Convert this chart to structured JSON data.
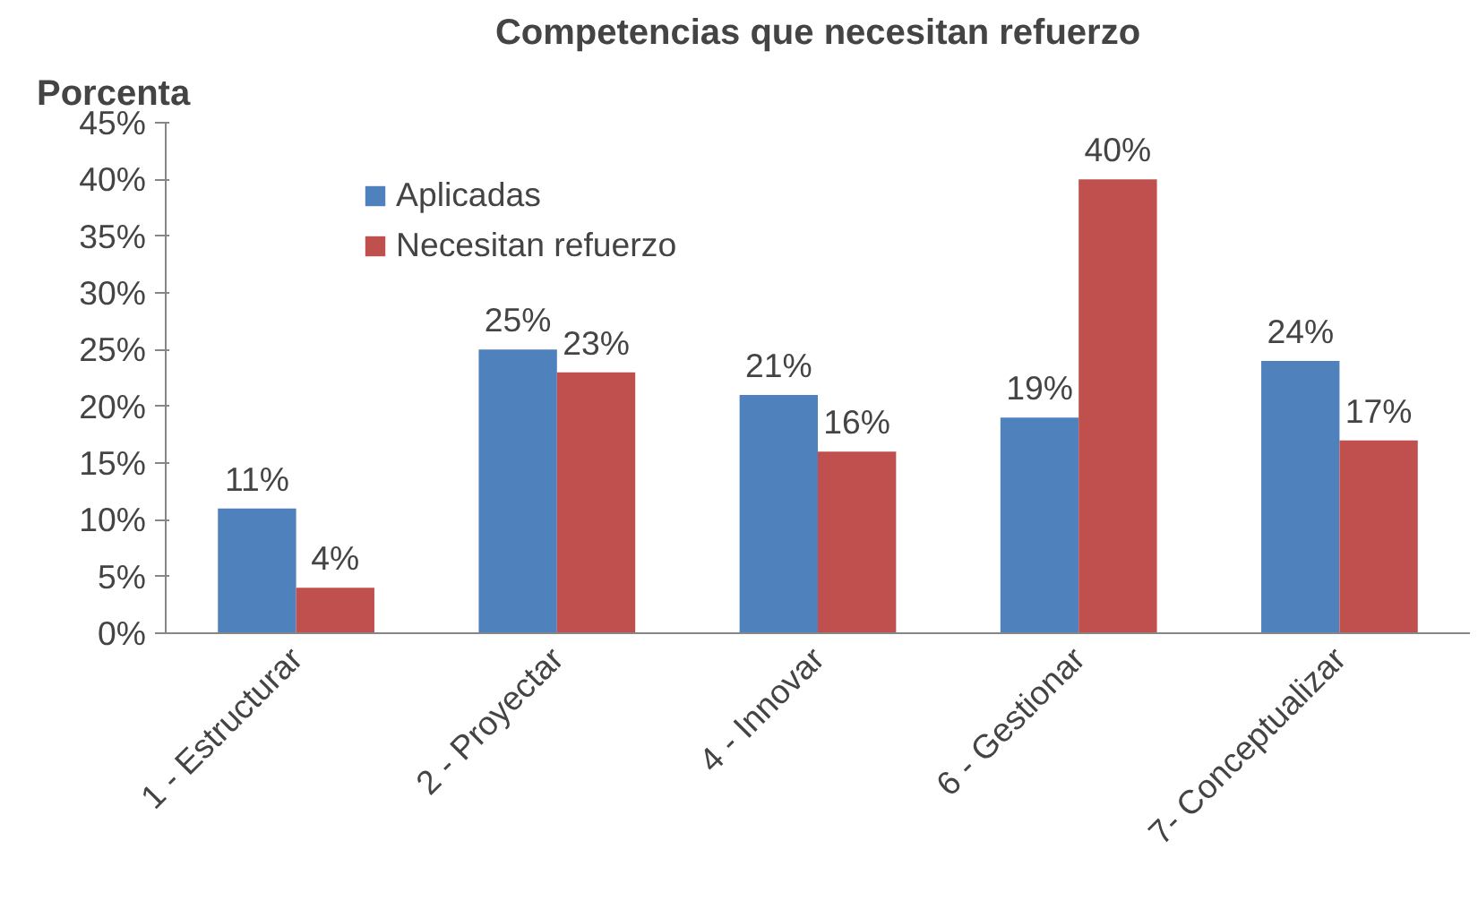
{
  "chart_data": {
    "type": "bar",
    "title": "Competencias que necesitan refuerzo",
    "ylabel": "Porcenta",
    "categories": [
      "1 - Estructurar",
      "2 - Proyectar",
      "4 - Innovar",
      "6 - Gestionar",
      "7- Conceptualizar"
    ],
    "series": [
      {
        "name": "Aplicadas",
        "color": "#4f81bd",
        "values": [
          11,
          25,
          21,
          19,
          24
        ],
        "value_labels": [
          "11%",
          "25%",
          "21%",
          "19%",
          "24%"
        ]
      },
      {
        "name": "Necesitan refuerzo",
        "color": "#c0504d",
        "values": [
          4,
          23,
          16,
          40,
          17
        ],
        "value_labels": [
          "4%",
          "23%",
          "16%",
          "40%",
          "17%"
        ]
      }
    ],
    "ylim": [
      0,
      45
    ],
    "yticks": [
      {
        "value": 0,
        "label": "0%"
      },
      {
        "value": 5,
        "label": "5%"
      },
      {
        "value": 10,
        "label": "10%"
      },
      {
        "value": 15,
        "label": "15%"
      },
      {
        "value": 20,
        "label": "20%"
      },
      {
        "value": 25,
        "label": "25%"
      },
      {
        "value": 30,
        "label": "30%"
      },
      {
        "value": 35,
        "label": "35%"
      },
      {
        "value": 40,
        "label": "40%"
      },
      {
        "value": 45,
        "label": "45%"
      }
    ],
    "grid": false,
    "legend": "top left"
  }
}
